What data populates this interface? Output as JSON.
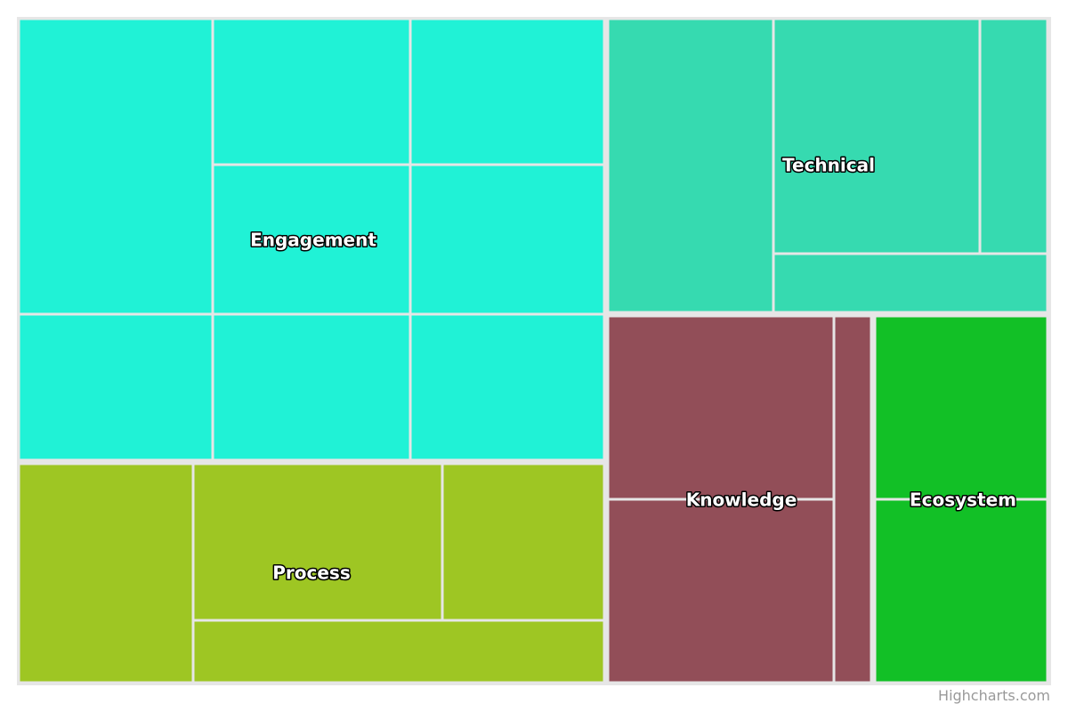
{
  "chart_data": {
    "type": "treemap",
    "credit": "Highcharts.com",
    "groups": [
      {
        "name": "Engagement",
        "color": "#20f2d6",
        "children": [
          {
            "value": 9
          },
          {
            "value": 9
          },
          {
            "value": 9
          },
          {
            "value": 9
          },
          {
            "value": 9
          },
          {
            "value": 9
          },
          {
            "value": 9
          },
          {
            "value": 9
          },
          {
            "value": 9
          }
        ]
      },
      {
        "name": "Process",
        "color": "#9ec623",
        "children": [
          {
            "value": 9
          },
          {
            "value": 9
          },
          {
            "value": 9
          },
          {
            "value": 9
          }
        ]
      },
      {
        "name": "Technical",
        "color": "#36dab0",
        "children": [
          {
            "value": 9
          },
          {
            "value": 9
          },
          {
            "value": 9
          },
          {
            "value": 9
          }
        ]
      },
      {
        "name": "Knowledge",
        "color": "#924e58",
        "children": [
          {
            "value": 9
          },
          {
            "value": 9
          },
          {
            "value": 9
          }
        ]
      },
      {
        "name": "Ecosystem",
        "color": "#12c026",
        "children": [
          {
            "value": 9
          },
          {
            "value": 9
          }
        ]
      }
    ]
  }
}
